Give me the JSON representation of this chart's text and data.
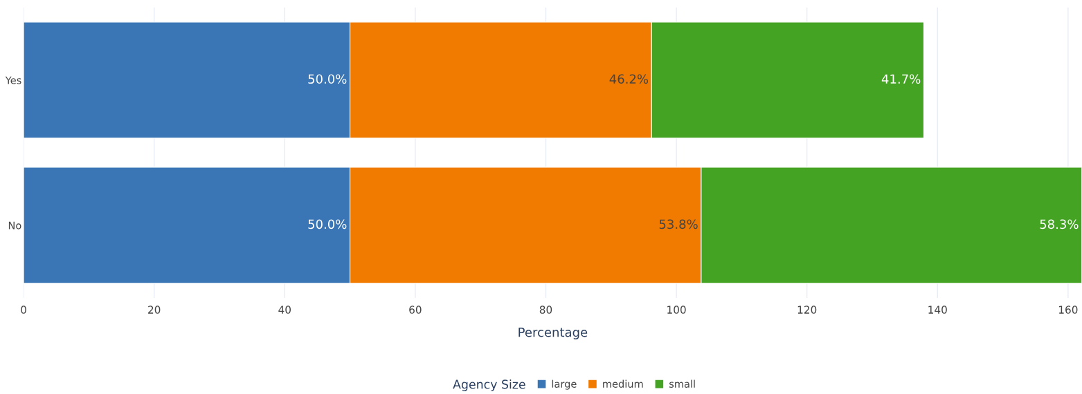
{
  "chart_data": {
    "type": "bar",
    "orientation": "horizontal",
    "stacked": true,
    "xlabel": "Percentage",
    "legend_title": "Agency Size",
    "categories": [
      "Yes",
      "No"
    ],
    "series": [
      {
        "name": "large",
        "color": "#3a76b5",
        "values": [
          50.0,
          50.0
        ],
        "value_labels": [
          "50.0%",
          "50.0%"
        ]
      },
      {
        "name": "medium",
        "color": "#f07b00",
        "values": [
          46.2,
          53.8
        ],
        "value_labels": [
          "46.2%",
          "53.8%"
        ]
      },
      {
        "name": "small",
        "color": "#45a324",
        "values": [
          41.7,
          58.3
        ],
        "value_labels": [
          "41.7%",
          "58.3%"
        ]
      }
    ],
    "xlim": [
      0,
      162.1
    ],
    "xticks": [
      0,
      20,
      40,
      60,
      80,
      100,
      120,
      140,
      160
    ],
    "grid": "x",
    "legend": "bottom"
  }
}
